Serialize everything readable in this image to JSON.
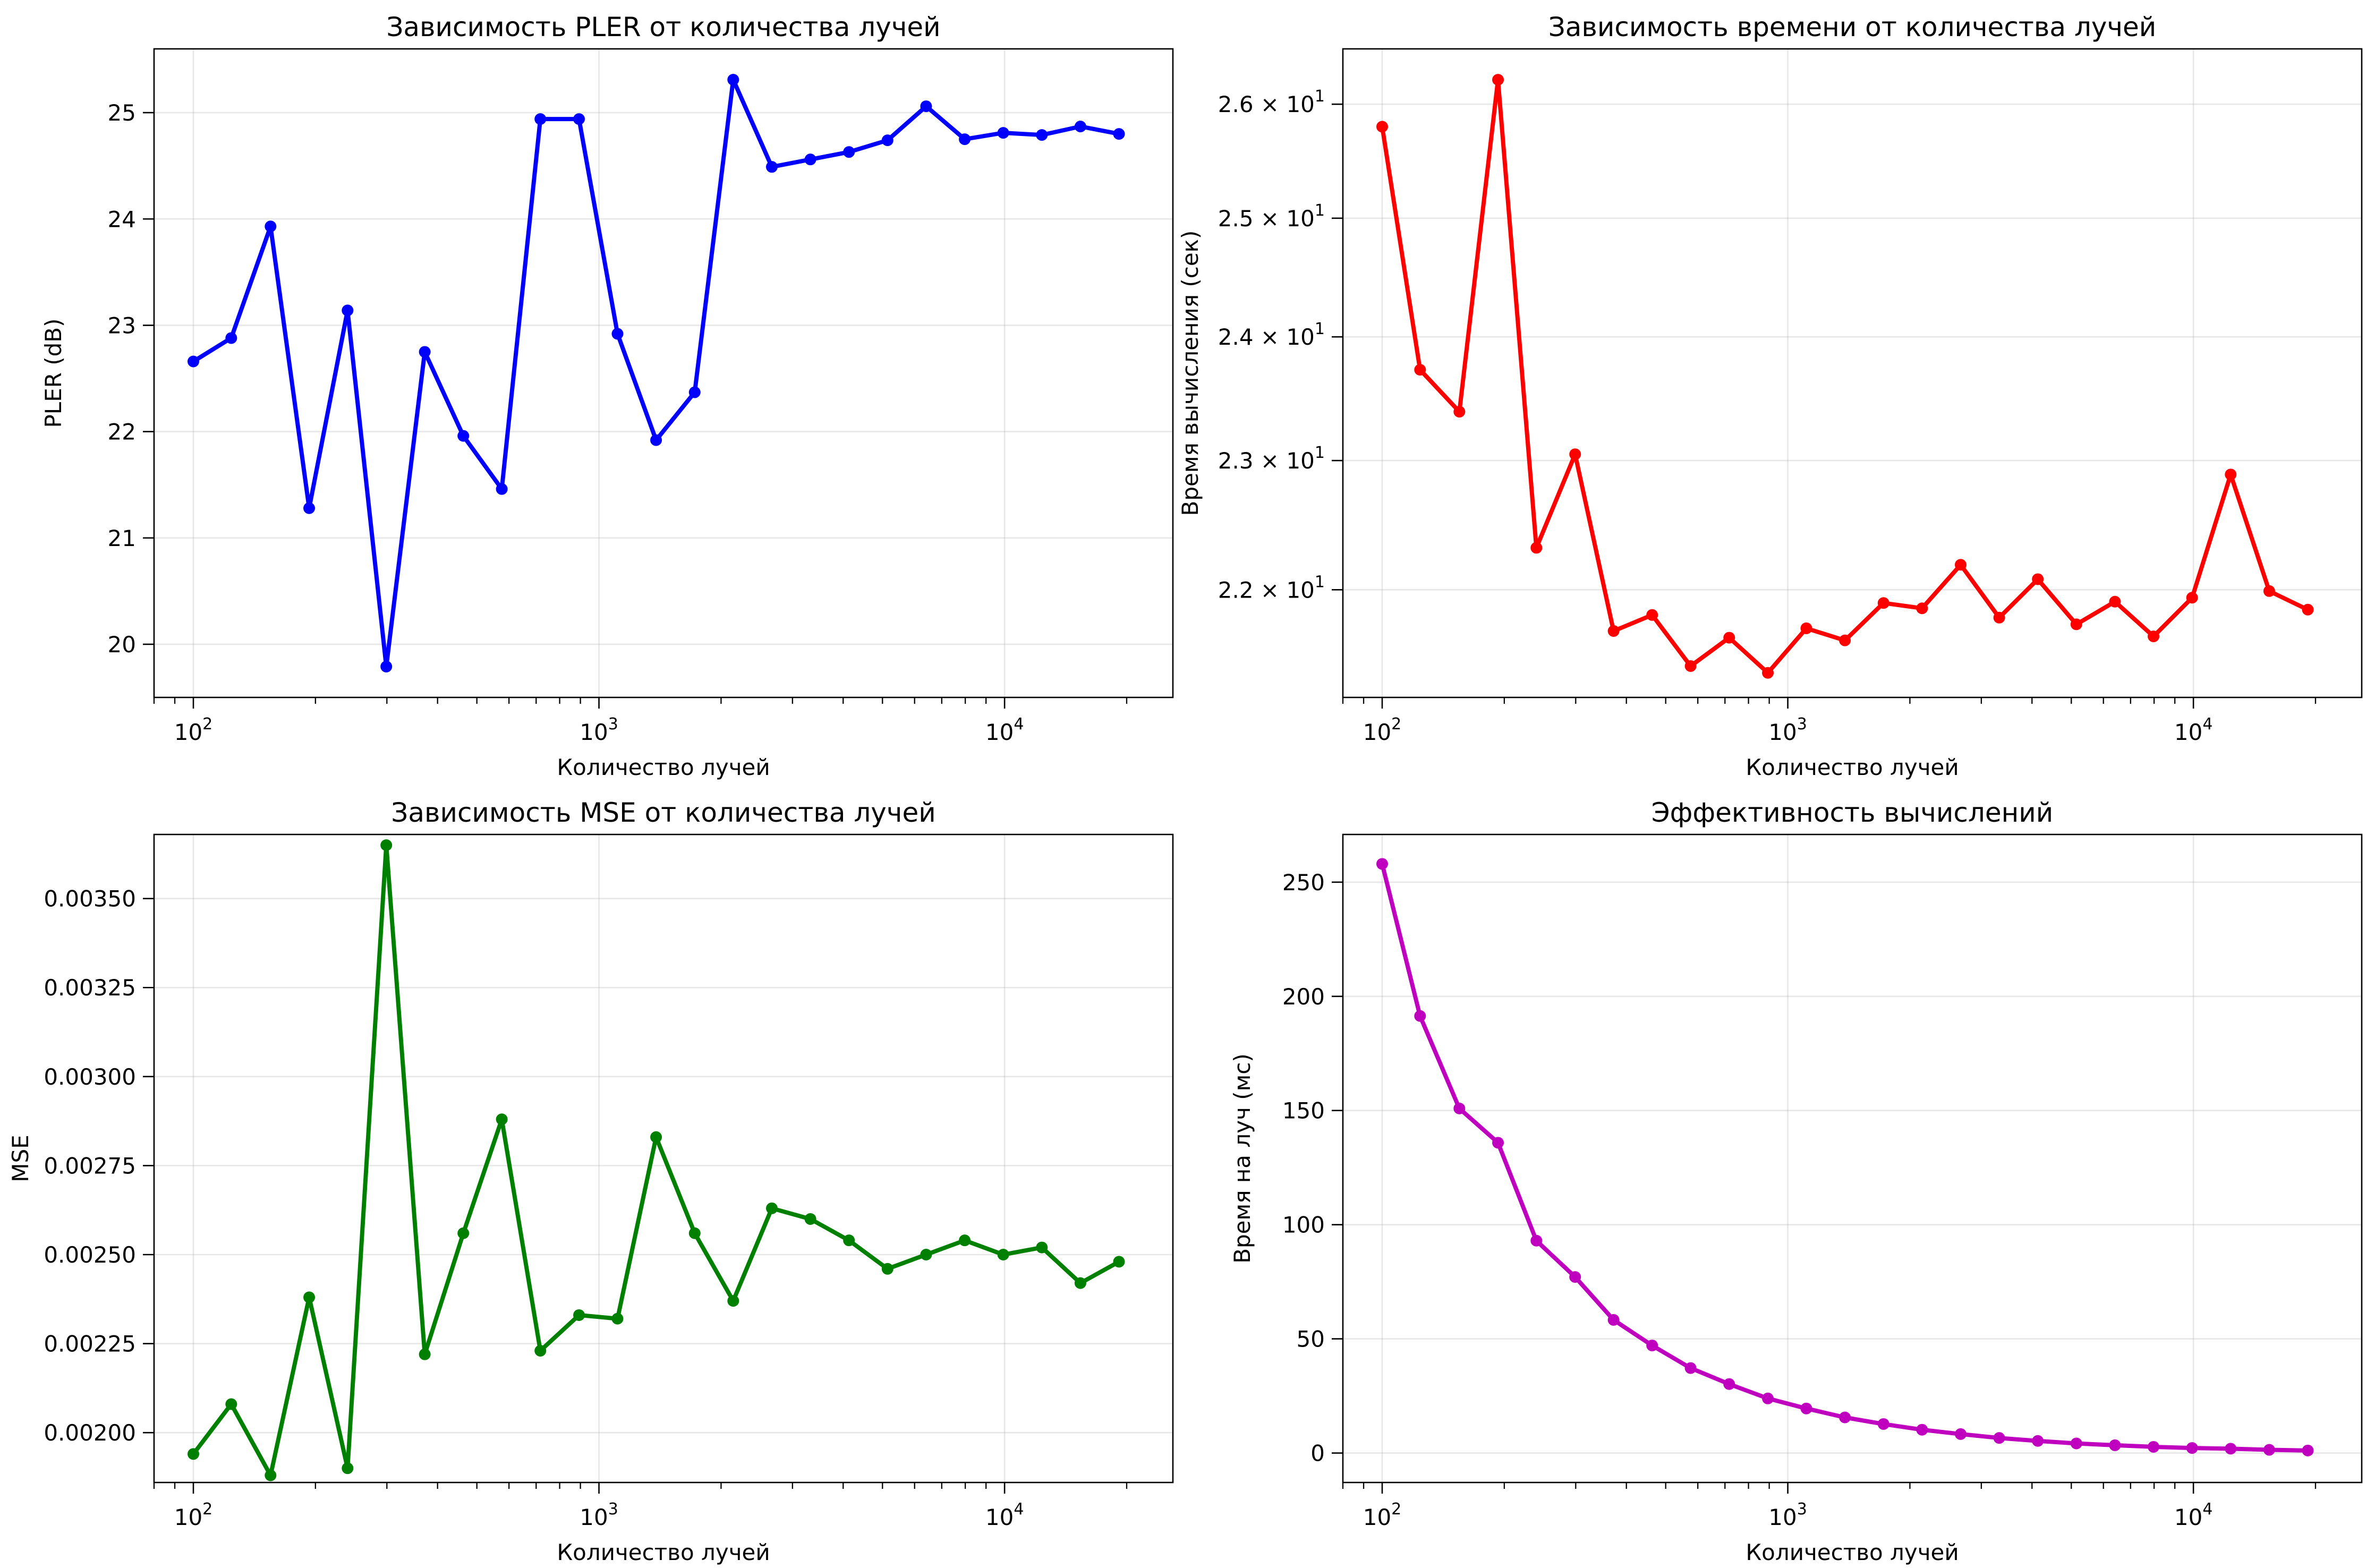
{
  "chart_data": [
    {
      "type": "line",
      "title": "Зависимость PLER от количества лучей",
      "xlabel": "Количество лучей",
      "ylabel": "PLER (dB)",
      "xscale": "log",
      "xlim": [
        80,
        26000
      ],
      "ylim": [
        19.5,
        25.6
      ],
      "grid": true,
      "xticks": [
        {
          "value": 100,
          "base": "10",
          "exp": "2"
        },
        {
          "value": 1000,
          "base": "10",
          "exp": "3"
        },
        {
          "value": 10000,
          "base": "10",
          "exp": "4"
        }
      ],
      "yticks": [
        {
          "value": 20,
          "label": "20"
        },
        {
          "value": 21,
          "label": "21"
        },
        {
          "value": 22,
          "label": "22"
        },
        {
          "value": 23,
          "label": "23"
        },
        {
          "value": 24,
          "label": "24"
        },
        {
          "value": 25,
          "label": "25"
        }
      ],
      "color": "#0000ff",
      "series": [
        {
          "x": [
            100,
            124,
            155,
            193,
            240,
            299,
            372,
            463,
            576,
            717,
            893,
            1111,
            1383,
            1722,
            2143,
            2668,
            3321,
            4134,
            5146,
            6406,
            7974,
            9926,
            12356,
            15381,
            19146
          ],
          "values": [
            22.66,
            22.88,
            23.93,
            21.28,
            23.14,
            19.79,
            22.75,
            21.96,
            21.46,
            24.94,
            24.94,
            22.92,
            21.92,
            22.37,
            25.31,
            24.49,
            24.56,
            24.63,
            24.74,
            25.06,
            24.75,
            24.81,
            24.79,
            24.87,
            24.8
          ]
        }
      ]
    },
    {
      "type": "line",
      "title": "Зависимость времени от количества лучей",
      "xlabel": "Количество лучей",
      "ylabel": "Время вычисления (сек)",
      "xscale": "log",
      "yscale": "log",
      "xlim": [
        80,
        26000
      ],
      "ylim": [
        21.2,
        26.5
      ],
      "grid": true,
      "xticks": [
        {
          "value": 100,
          "base": "10",
          "exp": "2"
        },
        {
          "value": 1000,
          "base": "10",
          "exp": "3"
        },
        {
          "value": 10000,
          "base": "10",
          "exp": "4"
        }
      ],
      "yticks": [
        {
          "value": 22,
          "mant": "2.2",
          "base": "10",
          "exp": "1"
        },
        {
          "value": 23,
          "mant": "2.3",
          "base": "10",
          "exp": "1"
        },
        {
          "value": 24,
          "mant": "2.4",
          "base": "10",
          "exp": "1"
        },
        {
          "value": 25,
          "mant": "2.5",
          "base": "10",
          "exp": "1"
        },
        {
          "value": 26,
          "mant": "2.6",
          "base": "10",
          "exp": "1"
        }
      ],
      "color": "#ff0000",
      "series": [
        {
          "x": [
            100,
            124,
            155,
            193,
            240,
            299,
            372,
            463,
            576,
            717,
            893,
            1111,
            1383,
            1722,
            2143,
            2668,
            3321,
            4134,
            5146,
            6406,
            7974,
            9926,
            12356,
            15381,
            19146
          ],
          "values": [
            25.8,
            23.73,
            23.39,
            26.22,
            22.32,
            23.05,
            21.69,
            21.81,
            21.43,
            21.64,
            21.38,
            21.71,
            21.62,
            21.9,
            21.86,
            22.19,
            21.79,
            22.08,
            21.74,
            21.91,
            21.65,
            21.94,
            22.89,
            21.99,
            21.85
          ]
        }
      ]
    },
    {
      "type": "line",
      "title": "Зависимость MSE от количества лучей",
      "xlabel": "Количество лучей",
      "ylabel": "MSE",
      "xscale": "log",
      "xlim": [
        80,
        26000
      ],
      "ylim": [
        0.00186,
        0.00368
      ],
      "grid": true,
      "xticks": [
        {
          "value": 100,
          "base": "10",
          "exp": "2"
        },
        {
          "value": 1000,
          "base": "10",
          "exp": "3"
        },
        {
          "value": 10000,
          "base": "10",
          "exp": "4"
        }
      ],
      "yticks": [
        {
          "value": 0.002,
          "label": "0.00200"
        },
        {
          "value": 0.00225,
          "label": "0.00225"
        },
        {
          "value": 0.0025,
          "label": "0.00250"
        },
        {
          "value": 0.00275,
          "label": "0.00275"
        },
        {
          "value": 0.003,
          "label": "0.00300"
        },
        {
          "value": 0.00325,
          "label": "0.00325"
        },
        {
          "value": 0.0035,
          "label": "0.00350"
        }
      ],
      "color": "#008000",
      "series": [
        {
          "x": [
            100,
            124,
            155,
            193,
            240,
            299,
            372,
            463,
            576,
            717,
            893,
            1111,
            1383,
            1722,
            2143,
            2668,
            3321,
            4134,
            5146,
            6406,
            7974,
            9926,
            12356,
            15381,
            19146
          ],
          "values": [
            0.00194,
            0.00208,
            0.00188,
            0.00238,
            0.0019,
            0.00365,
            0.00222,
            0.00256,
            0.00288,
            0.00223,
            0.00233,
            0.00232,
            0.00283,
            0.00256,
            0.00237,
            0.00263,
            0.0026,
            0.00254,
            0.00246,
            0.0025,
            0.00254,
            0.0025,
            0.00252,
            0.00242,
            0.00248
          ]
        }
      ]
    },
    {
      "type": "line",
      "title": "Эффективность вычислений",
      "xlabel": "Количество лучей",
      "ylabel": "Время на луч (мс)",
      "xscale": "log",
      "xlim": [
        80,
        26000
      ],
      "ylim": [
        -12.9,
        270.9
      ],
      "grid": true,
      "xticks": [
        {
          "value": 100,
          "base": "10",
          "exp": "2"
        },
        {
          "value": 1000,
          "base": "10",
          "exp": "3"
        },
        {
          "value": 10000,
          "base": "10",
          "exp": "4"
        }
      ],
      "yticks": [
        {
          "value": 0,
          "label": "0"
        },
        {
          "value": 50,
          "label": "50"
        },
        {
          "value": 100,
          "label": "100"
        },
        {
          "value": 150,
          "label": "150"
        },
        {
          "value": 200,
          "label": "200"
        },
        {
          "value": 250,
          "label": "250"
        }
      ],
      "color": "#bf00bf",
      "series": [
        {
          "x": [
            100,
            124,
            155,
            193,
            240,
            299,
            372,
            463,
            576,
            717,
            893,
            1111,
            1383,
            1722,
            2143,
            2668,
            3321,
            4134,
            5146,
            6406,
            7974,
            9926,
            12356,
            15381,
            19146
          ],
          "values": [
            258.0,
            191.4,
            150.9,
            135.9,
            93.0,
            77.1,
            58.3,
            47.1,
            37.2,
            30.2,
            23.9,
            19.5,
            15.6,
            12.7,
            10.2,
            8.3,
            6.6,
            5.3,
            4.2,
            3.4,
            2.7,
            2.2,
            1.9,
            1.4,
            1.1
          ]
        }
      ]
    }
  ]
}
